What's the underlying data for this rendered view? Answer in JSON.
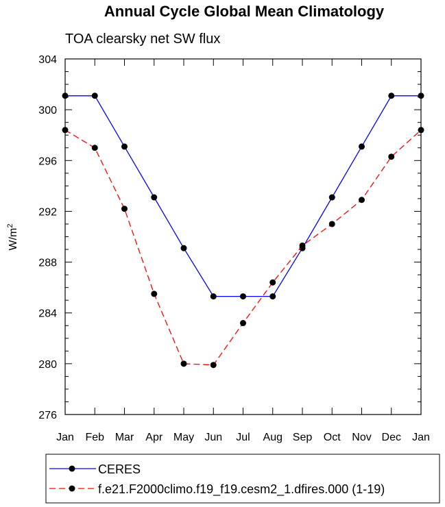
{
  "chart_data": {
    "type": "line",
    "title": "Annual Cycle Global Mean Climatology",
    "subtitle": "TOA clearsky net SW flux",
    "xlabel": "",
    "ylabel": "W/m",
    "ylabel_superscript": "2",
    "ylim": [
      276,
      304
    ],
    "yticks": [
      "276",
      "280",
      "284",
      "288",
      "292",
      "296",
      "300",
      "304"
    ],
    "categories": [
      "Jan",
      "Feb",
      "Mar",
      "Apr",
      "May",
      "Jun",
      "Jul",
      "Aug",
      "Sep",
      "Oct",
      "Nov",
      "Dec",
      "Jan"
    ],
    "grid": false,
    "legend_position": "bottom",
    "series": [
      {
        "name": "CERES",
        "color": "#0000ff",
        "style": "solid",
        "values": [
          301.1,
          301.1,
          297.1,
          293.1,
          289.1,
          285.3,
          285.3,
          285.3,
          289.1,
          293.1,
          297.1,
          301.1,
          301.1
        ]
      },
      {
        "name": "f.e21.F2000climo.f19_f19.cesm2_1.dfires.000 (1-19)",
        "color": "#ff0000",
        "style": "dashed",
        "values": [
          298.4,
          297.0,
          292.2,
          285.5,
          280.0,
          279.9,
          283.2,
          286.4,
          289.3,
          291.0,
          292.9,
          296.3,
          298.4
        ]
      }
    ]
  }
}
